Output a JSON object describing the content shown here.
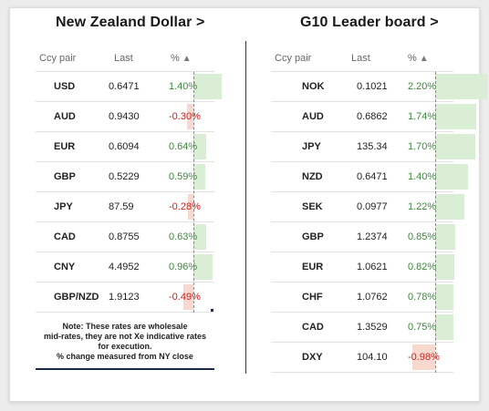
{
  "left_panel": {
    "title": "New Zealand Dollar >",
    "headers": {
      "pair": "Ccy pair",
      "last": "Last",
      "pct": "%",
      "sort_icon": "▲"
    },
    "rows": [
      {
        "ccy": "USD",
        "last": "0.6471",
        "pct": "1.40%",
        "value": 1.4
      },
      {
        "ccy": "AUD",
        "last": "0.9430",
        "pct": "-0.30%",
        "value": -0.3
      },
      {
        "ccy": "EUR",
        "last": "0.6094",
        "pct": "0.64%",
        "value": 0.64
      },
      {
        "ccy": "GBP",
        "last": "0.5229",
        "pct": "0.59%",
        "value": 0.59
      },
      {
        "ccy": "JPY",
        "last": "87.59",
        "pct": "-0.28%",
        "value": -0.28
      },
      {
        "ccy": "CAD",
        "last": "0.8755",
        "pct": "0.63%",
        "value": 0.63
      },
      {
        "ccy": "CNY",
        "last": "4.4952",
        "pct": "0.96%",
        "value": 0.96
      },
      {
        "ccy": "GBP/NZD",
        "last": "1.9123",
        "pct": "-0.49%",
        "value": -0.49
      }
    ],
    "note": [
      "Note: These rates are wholesale",
      "mid-rates, they are not Xe indicative rates",
      "for execution.",
      "% change measured from NY close"
    ]
  },
  "right_panel": {
    "title": "G10 Leader board >",
    "headers": {
      "pair": "Ccy pair",
      "last": "Last",
      "pct": "%",
      "sort_icon": "▲"
    },
    "rows": [
      {
        "ccy": "NOK",
        "last": "0.1021",
        "pct": "2.20%",
        "value": 2.2
      },
      {
        "ccy": "AUD",
        "last": "0.6862",
        "pct": "1.74%",
        "value": 1.74
      },
      {
        "ccy": "JPY",
        "last": "135.34",
        "pct": "1.70%",
        "value": 1.7
      },
      {
        "ccy": "NZD",
        "last": "0.6471",
        "pct": "1.40%",
        "value": 1.4
      },
      {
        "ccy": "SEK",
        "last": "0.0977",
        "pct": "1.22%",
        "value": 1.22
      },
      {
        "ccy": "GBP",
        "last": "1.2374",
        "pct": "0.85%",
        "value": 0.85
      },
      {
        "ccy": "EUR",
        "last": "1.0621",
        "pct": "0.82%",
        "value": 0.82
      },
      {
        "ccy": "CHF",
        "last": "1.0762",
        "pct": "0.78%",
        "value": 0.78
      },
      {
        "ccy": "CAD",
        "last": "1.3529",
        "pct": "0.75%",
        "value": 0.75
      },
      {
        "ccy": "DXY",
        "last": "104.10",
        "pct": "-0.98%",
        "value": -0.98
      }
    ]
  },
  "colors": {
    "positive_bar": "#d9eed4",
    "negative_bar": "#f8d9d0",
    "positive_text": "#3a8a3a",
    "negative_text": "#cc2222"
  }
}
